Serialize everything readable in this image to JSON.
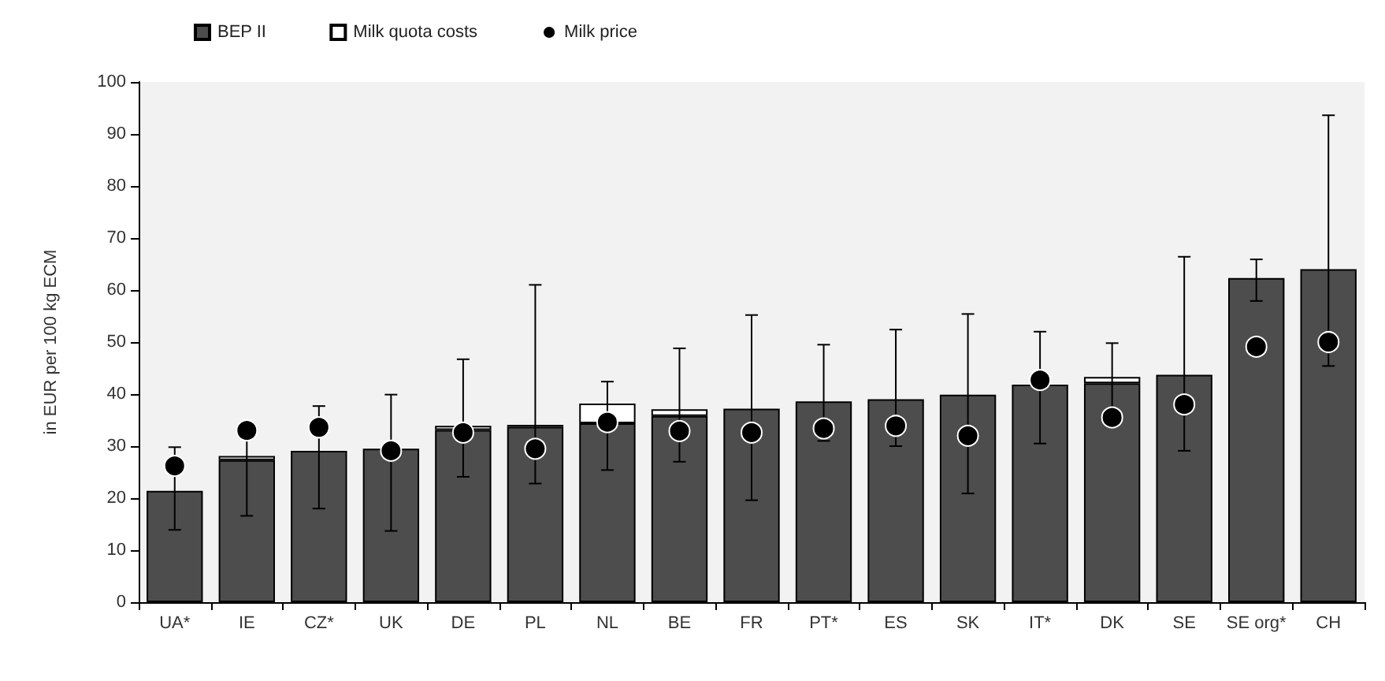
{
  "chart_data": {
    "type": "bar",
    "stacked": true,
    "ylabel": "in EUR per 100 kg ECM",
    "categories": [
      "UA*",
      "IE",
      "CZ*",
      "UK",
      "DE",
      "PL",
      "NL",
      "BE",
      "FR",
      "PT*",
      "ES",
      "SK",
      "IT*",
      "DK",
      "SE",
      "SE org*",
      "CH"
    ],
    "series": [
      {
        "name": "BEP II",
        "color": "#4d4d4d",
        "values": [
          21.4,
          27.3,
          29.1,
          29.5,
          33.1,
          33.7,
          34.4,
          35.8,
          37.2,
          38.6,
          39.0,
          39.9,
          41.8,
          42.1,
          43.7,
          62.3,
          64.0
        ],
        "errors": [
          [
            13.9,
            29.8
          ],
          [
            16.6,
            32
          ],
          [
            18,
            37.7
          ],
          [
            13.7,
            39.9
          ],
          [
            24.1,
            46.7
          ],
          [
            22.8,
            61.0
          ],
          [
            25.4,
            42.4
          ],
          [
            27,
            48.8
          ],
          [
            19.6,
            55.2
          ],
          [
            31,
            49.5
          ],
          [
            30,
            52.4
          ],
          [
            20.9,
            55.4
          ],
          [
            30.5,
            52.0
          ],
          [
            37,
            49.8
          ],
          [
            29.1,
            66.4
          ],
          [
            57.9,
            65.9
          ],
          [
            45.4,
            93.6
          ]
        ]
      },
      {
        "name": "Milk quota costs",
        "color": "#ffffff",
        "values": [
          null,
          0.8,
          null,
          null,
          0.8,
          0.4,
          3.8,
          1.3,
          null,
          null,
          null,
          null,
          null,
          1.2,
          null,
          null,
          null
        ]
      },
      {
        "name": "Milk price",
        "type": "scatter",
        "color": "#000000",
        "x": [
          "UA*",
          "IE",
          "CZ*",
          "UK",
          "DE",
          "PL",
          "NL",
          "BE",
          "FR",
          "PT*",
          "ES",
          "SK",
          "IT*",
          "DK",
          "SE",
          "SE org*",
          "CH"
        ],
        "values": [
          26.2,
          33,
          33.6,
          29.1,
          32.6,
          29.5,
          34.6,
          32.9,
          32.6,
          33.4,
          33.9,
          32.0,
          42.7,
          35.5,
          38.0,
          49.1,
          50.0
        ]
      }
    ],
    "ylim": [
      0,
      100
    ],
    "yticks": [
      0,
      10,
      20,
      30,
      40,
      50,
      60,
      70,
      80,
      90,
      100
    ],
    "grid": false,
    "legend": "top left",
    "marker": "circle"
  }
}
